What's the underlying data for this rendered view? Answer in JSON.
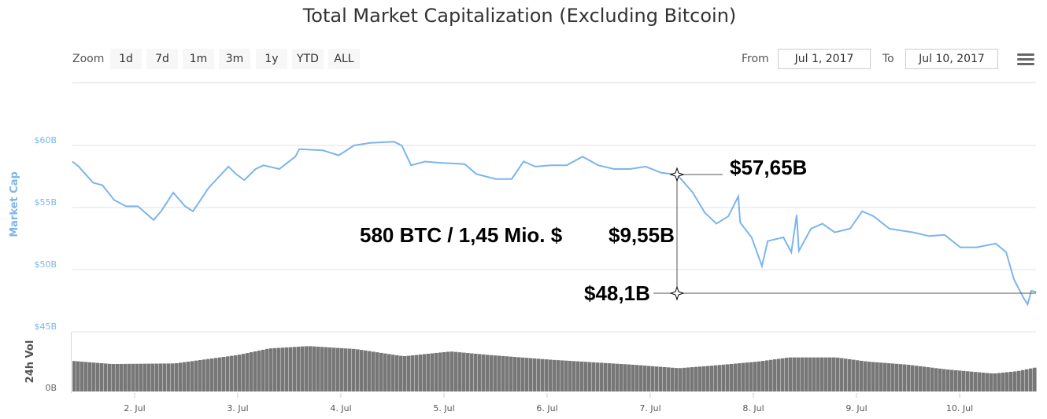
{
  "title": "Total Market Capitalization (Excluding Bitcoin)",
  "toolbar": {
    "zoom_label": "Zoom",
    "zoom_buttons": [
      "1d",
      "7d",
      "1m",
      "3m",
      "1y",
      "YTD",
      "ALL"
    ],
    "from_label": "From",
    "from_value": "Jul 1, 2017",
    "to_label": "To",
    "to_value": "Jul 10, 2017",
    "menu_icon": "hamburger-menu-icon"
  },
  "colors": {
    "line": "#7cb5ec",
    "volume": "#777777",
    "axis_label": "#7cb5ec",
    "annotation": "#000000"
  },
  "chart_data": [
    {
      "type": "line",
      "title": "Total Market Capitalization (Excluding Bitcoin)",
      "ylabel": "Market Cap",
      "yticks": [
        "$60B",
        "$55B",
        "$50B",
        "$45B"
      ],
      "ylim": [
        45,
        60
      ],
      "xticks": [
        "2. Jul",
        "3. Jul",
        "4. Jul",
        "5. Jul",
        "6. Jul",
        "7. Jul",
        "8. Jul",
        "9. Jul",
        "10. Jul"
      ],
      "grid": true,
      "series": [
        {
          "name": "Market Cap",
          "x": [
            "2017-07-01T09:30",
            "2017-07-01T11:00",
            "2017-07-01T14:20",
            "2017-07-01T16:30",
            "2017-07-01T19:15",
            "2017-07-01T22:00",
            "2017-07-02T00:45",
            "2017-07-02T04:25",
            "2017-07-02T06:10",
            "2017-07-02T09:00",
            "2017-07-02T11:45",
            "2017-07-02T13:35",
            "2017-07-02T17:15",
            "2017-07-02T21:50",
            "2017-07-02T23:35",
            "2017-07-03T01:30",
            "2017-07-03T04:10",
            "2017-07-03T06:00",
            "2017-07-03T09:40",
            "2017-07-03T13:25",
            "2017-07-03T14:20",
            "2017-07-03T19:50",
            "2017-07-03T23:30",
            "2017-07-04T03:05",
            "2017-07-04T06:50",
            "2017-07-04T12:20",
            "2017-07-04T14:10",
            "2017-07-04T16:20",
            "2017-07-04T19:35",
            "2017-07-04T23:15",
            "2017-07-05T04:50",
            "2017-07-05T07:30",
            "2017-07-05T12:05",
            "2017-07-05T15:45",
            "2017-07-05T18:30",
            "2017-07-05T21:15",
            "2017-07-06T00:55",
            "2017-07-06T04:35",
            "2017-07-06T08:15",
            "2017-07-06T11:55",
            "2017-07-06T15:35",
            "2017-07-06T19:15",
            "2017-07-06T22:55",
            "2017-07-07T02:35",
            "2017-07-07T06:15",
            "2017-07-07T09:55",
            "2017-07-07T12:40",
            "2017-07-07T15:25",
            "2017-07-07T18:10",
            "2017-07-07T20:30",
            "2017-07-07T20:55",
            "2017-07-07T23:35",
            "2017-07-08T02:00",
            "2017-07-08T03:20",
            "2017-07-08T07:00",
            "2017-07-08T08:50",
            "2017-07-08T10:05",
            "2017-07-08T10:35",
            "2017-07-08T13:25",
            "2017-07-08T16:05",
            "2017-07-08T18:55",
            "2017-07-08T22:30",
            "2017-07-09T01:20",
            "2017-07-09T04:00",
            "2017-07-09T07:40",
            "2017-07-09T13:10",
            "2017-07-09T16:55",
            "2017-07-09T20:30",
            "2017-07-10T00:10",
            "2017-07-10T03:55",
            "2017-07-10T08:25",
            "2017-07-10T10:50",
            "2017-07-10T12:40",
            "2017-07-10T14:55",
            "2017-07-10T15:50",
            "2017-07-10T16:40",
            "2017-07-10T17:50"
          ],
          "values": [
            58.7,
            58.3,
            57.0,
            56.8,
            55.6,
            55.1,
            55.1,
            54.0,
            54.7,
            56.2,
            55.1,
            54.7,
            56.6,
            58.3,
            57.7,
            57.2,
            58.1,
            58.4,
            58.1,
            59.1,
            59.7,
            59.6,
            59.2,
            60.0,
            60.2,
            60.3,
            60.0,
            58.4,
            58.7,
            58.6,
            58.5,
            57.7,
            57.3,
            57.3,
            58.7,
            58.3,
            58.4,
            58.4,
            59.1,
            58.4,
            58.1,
            58.1,
            58.3,
            57.8,
            57.65,
            56.2,
            54.6,
            53.7,
            54.3,
            55.9,
            53.8,
            52.6,
            50.3,
            52.3,
            52.6,
            51.4,
            54.4,
            51.5,
            53.3,
            53.7,
            53.0,
            53.3,
            54.7,
            54.3,
            53.3,
            53.0,
            52.7,
            52.8,
            51.8,
            51.8,
            52.1,
            51.4,
            49.2,
            47.7,
            47.2,
            48.3,
            48.2
          ]
        }
      ]
    },
    {
      "type": "bar",
      "ylabel": "24h Vol",
      "yticks": [
        "0B"
      ],
      "series": [
        {
          "name": "24h Vol",
          "x": [
            "2017-07-01T09:30",
            "2017-07-01T18:20",
            "2017-07-02T09:00",
            "2017-07-02T23:35",
            "2017-07-03T06:55",
            "2017-07-03T16:05",
            "2017-07-04T03:05",
            "2017-07-04T14:10",
            "2017-07-05T01:10",
            "2017-07-05T10:20",
            "2017-07-06T00:55",
            "2017-07-06T19:15",
            "2017-07-07T06:15",
            "2017-07-07T13:35",
            "2017-07-08T00:35",
            "2017-07-08T07:55",
            "2017-07-08T18:55",
            "2017-07-09T02:10",
            "2017-07-09T11:20",
            "2017-07-09T20:30",
            "2017-07-10T07:30",
            "2017-07-10T13:00",
            "2017-07-10T17:50"
          ],
          "level": [
            0.51,
            0.46,
            0.47,
            0.61,
            0.72,
            0.76,
            0.71,
            0.59,
            0.67,
            0.61,
            0.53,
            0.45,
            0.39,
            0.43,
            0.5,
            0.57,
            0.57,
            0.5,
            0.45,
            0.37,
            0.3,
            0.34,
            0.41
          ]
        }
      ]
    }
  ],
  "annotations": {
    "high": "$57,65B",
    "difference": "$9,55B",
    "low": "$48,1B",
    "note": "580 BTC / 1,45 Mio. $"
  }
}
